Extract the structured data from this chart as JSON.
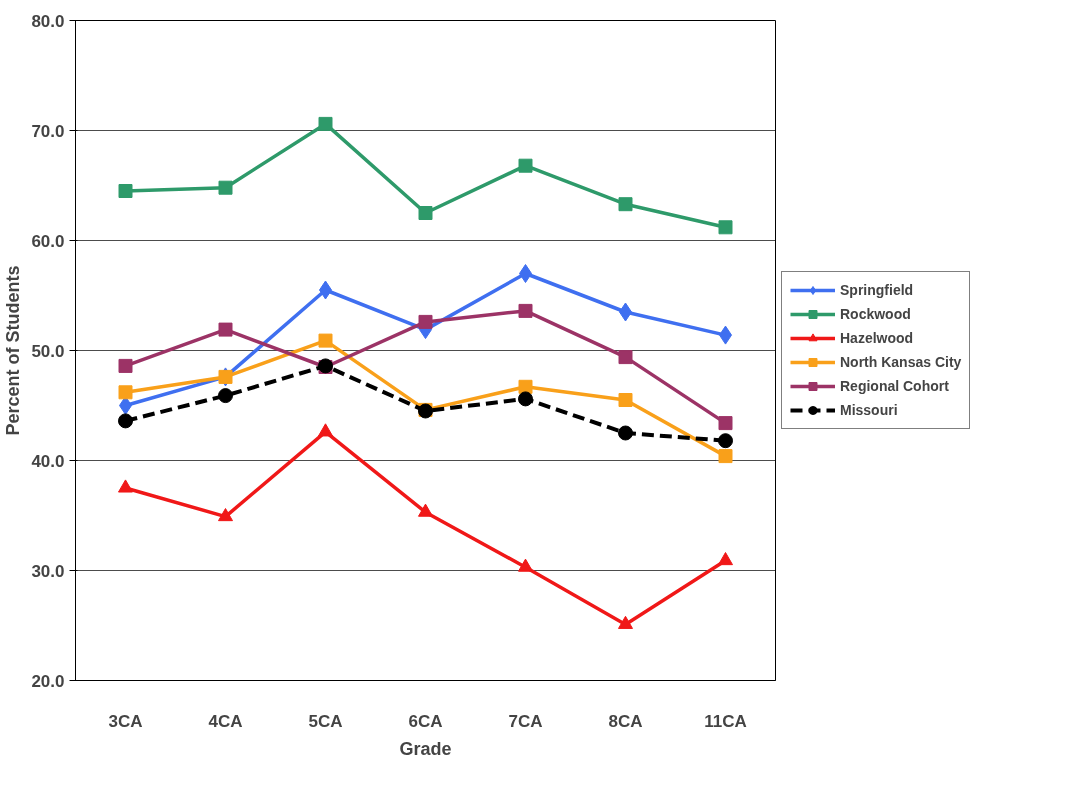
{
  "chart_data": {
    "type": "line",
    "xlabel": "Grade",
    "ylabel": "Percent of Students",
    "categories": [
      "3CA",
      "4CA",
      "5CA",
      "6CA",
      "7CA",
      "8CA",
      "11CA"
    ],
    "ylim": [
      20,
      80
    ],
    "yticks": [
      {
        "value": 20,
        "label": "20.0"
      },
      {
        "value": 30,
        "label": "30.0"
      },
      {
        "value": 40,
        "label": "40.0"
      },
      {
        "value": 50,
        "label": "50.0"
      },
      {
        "value": 60,
        "label": "60.0"
      },
      {
        "value": 70,
        "label": "70.0"
      },
      {
        "value": 80,
        "label": "80.0"
      }
    ],
    "grid": "y",
    "legend": "right",
    "series": [
      {
        "name": "Springfield",
        "color": "#3f6ff0",
        "marker": "diamond",
        "line_style": "solid",
        "values": [
          45.0,
          47.6,
          55.5,
          51.9,
          57.0,
          53.5,
          51.4
        ]
      },
      {
        "name": "Rockwood",
        "color": "#2e9a6a",
        "marker": "square",
        "line_style": "solid",
        "values": [
          64.5,
          64.8,
          70.6,
          62.5,
          66.8,
          63.3,
          61.2
        ]
      },
      {
        "name": "Hazelwood",
        "color": "#f01818",
        "marker": "triangle",
        "line_style": "solid",
        "values": [
          37.5,
          34.9,
          42.6,
          35.3,
          30.3,
          25.1,
          30.9
        ]
      },
      {
        "name": "North Kansas City",
        "color": "#f9a01a",
        "marker": "square",
        "line_style": "solid",
        "values": [
          46.2,
          47.6,
          50.9,
          44.6,
          46.7,
          45.5,
          40.4
        ]
      },
      {
        "name": "Regional Cohort",
        "color": "#9c3366",
        "marker": "square",
        "line_style": "solid",
        "values": [
          48.6,
          51.9,
          48.5,
          52.6,
          53.6,
          49.4,
          43.4
        ]
      },
      {
        "name": "Missouri",
        "color": "#000000",
        "marker": "circle",
        "line_style": "dashed",
        "values": [
          43.6,
          45.9,
          48.6,
          44.5,
          45.6,
          42.5,
          41.8
        ]
      }
    ]
  }
}
